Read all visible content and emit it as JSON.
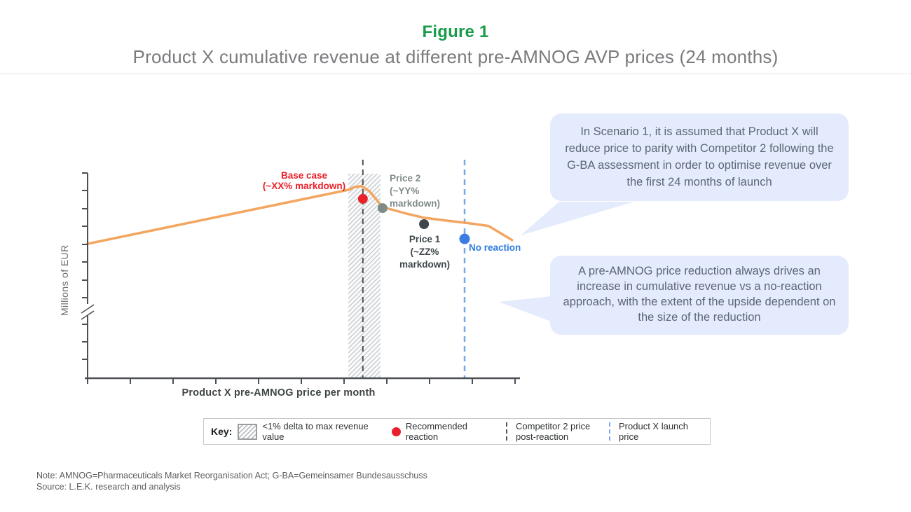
{
  "header": {
    "figure_label": "Figure 1",
    "title": "Product X cumulative revenue at different pre-AMNOG AVP prices (24 months)"
  },
  "chart": {
    "y_axis_label": "Millions of EUR",
    "x_axis_label": "Product X pre-AMNOG price per month"
  },
  "annotations": {
    "base_case": {
      "lines": [
        "Base case",
        "(~XX% markdown)"
      ],
      "color": "#e8212a"
    },
    "price2": {
      "lines": [
        "Price 2",
        "(~YY%",
        "markdown)"
      ],
      "color": "#7e8b88"
    },
    "price1": {
      "lines": [
        "Price 1",
        "(~ZZ%",
        "markdown)"
      ],
      "color": "#3e464a"
    },
    "no_reaction": {
      "label": "No reaction",
      "color": "#2e7ce0"
    }
  },
  "callouts": [
    {
      "text": "In Scenario 1, it is assumed that Product X will reduce price to parity with Competitor 2 following the G-BA assessment in order to optimise revenue over the first 24 months of launch"
    },
    {
      "text": "A pre-AMNOG price reduction always drives an increase in cumulative revenue vs a no-reaction approach, with the extent of the upside dependent on the size of the reduction"
    }
  ],
  "key": {
    "title": "Key:",
    "items": [
      {
        "icon": "hatch-swatch",
        "label": "<1% delta to max revenue value"
      },
      {
        "icon": "red-dot",
        "label": "Recommended reaction"
      },
      {
        "icon": "dark-dashed-line",
        "label": "Competitor 2 price post-reaction"
      },
      {
        "icon": "blue-dashed-line",
        "label": "Product X launch price"
      }
    ]
  },
  "notes": {
    "note": "Note: AMNOG=Pharmaceuticals Market Reorganisation Act; G-BA=Gemeinsamer Bundesausschuss",
    "source": "Source: L.E.K. research and analysis"
  },
  "chart_data": {
    "type": "line",
    "title": "Product X cumulative revenue at different pre-AMNOG AVP prices (24 months)",
    "xlabel": "Product X pre-AMNOG price per month",
    "ylabel": "Millions of EUR",
    "axis_numbers_shown": false,
    "units_note": "Schematic figure: no numeric tick labels shown. x = axis-tick units (0-10, 11 ticks), y = revenue index (0 = x-axis, 100 = top of y-axis; y-axis has a break near index 33).",
    "grid": false,
    "legend_position": "bottom (boxed key)",
    "series": [
      {
        "name": "Cumulative revenue curve",
        "color": "#f2a660",
        "points": [
          [
            0,
            65.5
          ],
          [
            6.1,
            91.8
          ],
          [
            6.25,
            93.2
          ],
          [
            6.41,
            93.6
          ],
          [
            6.6,
            91.0
          ],
          [
            6.9,
            83.4
          ],
          [
            7.46,
            80.2
          ],
          [
            7.87,
            78.2
          ],
          [
            8.4,
            76.8
          ],
          [
            8.82,
            75.8
          ],
          [
            9.38,
            74.2
          ],
          [
            9.93,
            67.3
          ]
        ]
      }
    ],
    "markers": [
      {
        "id": "base-case",
        "label": "Base case (~XX% markdown)",
        "point": [
          6.44,
          87.4
        ],
        "color": "#e8212b"
      },
      {
        "id": "price-2",
        "label": "Price 2 (~YY% markdown)",
        "point": [
          6.9,
          82.9
        ],
        "color": "#7e8b87"
      },
      {
        "id": "price-1",
        "label": "Price 1 (~ZZ% markdown)",
        "point": [
          7.87,
          75.1
        ],
        "color": "#3f474b"
      },
      {
        "id": "no-reaction",
        "label": "No reaction",
        "point": [
          8.82,
          67.9
        ],
        "color": "#3c7de2"
      }
    ],
    "reference_lines": [
      {
        "id": "competitor2",
        "label": "Competitor 2 price post-reaction",
        "x": 6.44,
        "style": "dashed",
        "color": "#4d5154"
      },
      {
        "id": "launch",
        "label": "Product X launch price",
        "x": 8.82,
        "style": "dashed",
        "color": "#76a7ea"
      }
    ],
    "band": {
      "label": "<1% delta to max revenue value",
      "from": 6.1,
      "to": 6.85,
      "pattern": "diagonal-hatch"
    }
  }
}
